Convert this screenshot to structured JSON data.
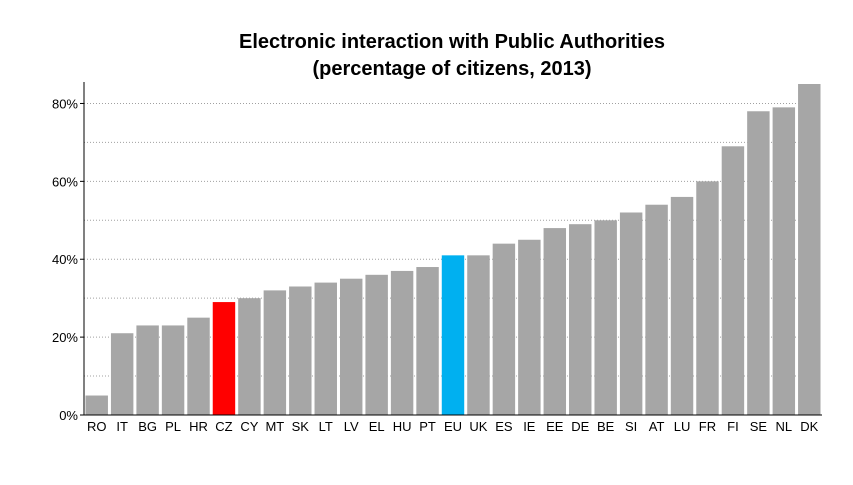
{
  "chart_data": {
    "type": "bar",
    "title": "Electronic interaction with Public Authorities",
    "subtitle": "(percentage of citizens, 2013)",
    "xlabel": "",
    "ylabel": "",
    "ylim": [
      0,
      85
    ],
    "y_tick_values": [
      0,
      20,
      40,
      60,
      80
    ],
    "y_tick_labels": [
      "0%",
      "20%",
      "40%",
      "60%",
      "80%"
    ],
    "grid": true,
    "grid_style": "dotted horizontal every 10%",
    "categories": [
      "RO",
      "IT",
      "BG",
      "PL",
      "HR",
      "CZ",
      "CY",
      "MT",
      "SK",
      "LT",
      "LV",
      "EL",
      "HU",
      "PT",
      "EU",
      "UK",
      "ES",
      "IE",
      "EE",
      "DE",
      "BE",
      "SI",
      "AT",
      "LU",
      "FR",
      "FI",
      "SE",
      "NL",
      "DK"
    ],
    "values": [
      5,
      21,
      23,
      23,
      25,
      29,
      30,
      32,
      33,
      34,
      35,
      36,
      37,
      38,
      41,
      41,
      44,
      45,
      48,
      49,
      50,
      52,
      54,
      56,
      60,
      69,
      78,
      79,
      85
    ],
    "colors": {
      "default": "#a6a6a6",
      "highlight_CZ": "#ff0000",
      "highlight_EU": "#00b0f0",
      "grid": "#a0a0a0",
      "axis": "#000000"
    }
  }
}
